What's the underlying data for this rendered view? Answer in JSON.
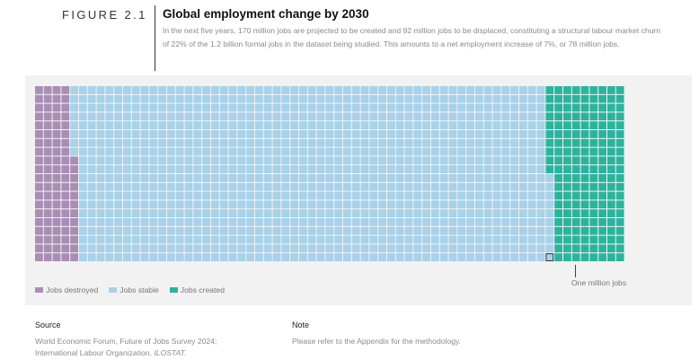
{
  "figure": {
    "label": "FIGURE 2.1",
    "title": "Global employment change by 2030",
    "description": "In the next five years, 170 million jobs are projected to be created and 92 million jobs to be displaced, constituting a structural labour market churn of 22% of the 1.2 billion formal jobs in the dataset being studied. This amounts to a net employment increase of 7%, or 78 million jobs."
  },
  "chart_data": {
    "type": "waffle",
    "unit_label": "One million jobs",
    "series": [
      {
        "name": "Jobs destroyed",
        "value": 92,
        "color": "#a98db5"
      },
      {
        "name": "Jobs stable",
        "value": 1078,
        "color": "#a8d1ea"
      },
      {
        "name": "Jobs created",
        "value": 170,
        "color": "#2bb39d"
      }
    ]
  },
  "footer": {
    "source_heading": "Source",
    "source_line1": "World Economic Forum, Future of Jobs Survey 2024;",
    "source_line2_prefix": "International Labour Organization, ",
    "source_line2_italic": "ILOSTAT.",
    "note_heading": "Note",
    "note_text": "Please refer to the Appendix for the methodology."
  }
}
